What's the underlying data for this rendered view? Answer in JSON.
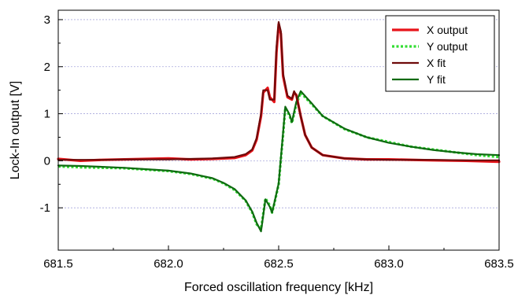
{
  "chart_data": {
    "type": "line",
    "title": "",
    "xlabel": "Forced oscillation frequency [kHz]",
    "ylabel": "Lock-In output [V]",
    "xlim": [
      681.5,
      683.5
    ],
    "ylim": [
      -1.9,
      3.2
    ],
    "xticks": [
      681.5,
      682.0,
      682.5,
      683.0,
      683.5
    ],
    "xtick_labels": [
      "681.5",
      "682.0",
      "682.5",
      "683.0",
      "683.5"
    ],
    "yticks": [
      -1,
      0,
      1,
      2,
      3
    ],
    "ytick_labels": [
      "-1",
      "0",
      "1",
      "2",
      "3"
    ],
    "grid": "horizontal dotted",
    "legend_position": "top-right",
    "series": [
      {
        "name": "X output",
        "style": "solid",
        "color": "#e8141a",
        "x": [
          681.5,
          681.6,
          681.7,
          681.8,
          681.9,
          682.0,
          682.1,
          682.2,
          682.3,
          682.35,
          682.38,
          682.4,
          682.42,
          682.43,
          682.45,
          682.46,
          682.48,
          682.49,
          682.5,
          682.51,
          682.52,
          682.54,
          682.56,
          682.57,
          682.58,
          682.6,
          682.62,
          682.65,
          682.7,
          682.8,
          682.9,
          683.0,
          683.2,
          683.35,
          683.5
        ],
        "values": [
          0.04,
          0.0,
          0.02,
          0.03,
          0.04,
          0.05,
          0.03,
          0.04,
          0.06,
          0.12,
          0.22,
          0.45,
          0.95,
          1.45,
          1.55,
          1.35,
          1.25,
          2.3,
          2.9,
          2.7,
          1.8,
          1.35,
          1.3,
          1.45,
          1.4,
          0.95,
          0.55,
          0.28,
          0.12,
          0.05,
          0.03,
          0.03,
          0.01,
          0.0,
          -0.02
        ]
      },
      {
        "name": "Y output",
        "style": "dotted",
        "color": "#33dd33",
        "x": [
          681.5,
          681.6,
          681.7,
          681.8,
          681.9,
          682.0,
          682.1,
          682.2,
          682.25,
          682.3,
          682.35,
          682.38,
          682.4,
          682.42,
          682.44,
          682.46,
          682.47,
          682.48,
          682.5,
          682.52,
          682.53,
          682.55,
          682.56,
          682.58,
          682.6,
          682.65,
          682.7,
          682.8,
          682.9,
          683.0,
          683.1,
          683.2,
          683.3,
          683.4,
          683.5
        ],
        "values": [
          -0.12,
          -0.14,
          -0.15,
          -0.16,
          -0.19,
          -0.22,
          -0.28,
          -0.38,
          -0.48,
          -0.62,
          -0.85,
          -1.1,
          -1.35,
          -1.45,
          -0.8,
          -0.95,
          -1.1,
          -0.92,
          -0.5,
          0.55,
          1.12,
          0.95,
          0.8,
          1.2,
          1.45,
          1.2,
          0.95,
          0.67,
          0.5,
          0.4,
          0.3,
          0.24,
          0.18,
          0.12,
          0.08
        ]
      },
      {
        "name": "X fit",
        "style": "solid",
        "color": "#6e0a0a",
        "x": [
          681.5,
          681.6,
          681.7,
          681.8,
          681.9,
          682.0,
          682.1,
          682.2,
          682.3,
          682.35,
          682.38,
          682.4,
          682.42,
          682.43,
          682.45,
          682.46,
          682.48,
          682.49,
          682.5,
          682.51,
          682.52,
          682.54,
          682.56,
          682.57,
          682.58,
          682.6,
          682.62,
          682.65,
          682.7,
          682.8,
          682.9,
          683.0,
          683.2,
          683.35,
          683.5
        ],
        "values": [
          0.02,
          0.02,
          0.02,
          0.03,
          0.03,
          0.03,
          0.04,
          0.05,
          0.08,
          0.14,
          0.24,
          0.48,
          1.0,
          1.5,
          1.5,
          1.3,
          1.3,
          2.4,
          2.95,
          2.75,
          1.85,
          1.38,
          1.32,
          1.48,
          1.38,
          0.95,
          0.55,
          0.28,
          0.12,
          0.05,
          0.03,
          0.02,
          0.02,
          0.01,
          0.01
        ]
      },
      {
        "name": "Y fit",
        "style": "solid",
        "color": "#0e6a10",
        "x": [
          681.5,
          681.6,
          681.7,
          681.8,
          681.9,
          682.0,
          682.1,
          682.2,
          682.25,
          682.3,
          682.35,
          682.38,
          682.4,
          682.42,
          682.44,
          682.46,
          682.47,
          682.48,
          682.5,
          682.52,
          682.53,
          682.55,
          682.56,
          682.58,
          682.6,
          682.65,
          682.7,
          682.8,
          682.9,
          683.0,
          683.1,
          683.2,
          683.3,
          683.4,
          683.5
        ],
        "values": [
          -0.1,
          -0.11,
          -0.13,
          -0.15,
          -0.18,
          -0.21,
          -0.27,
          -0.37,
          -0.47,
          -0.6,
          -0.84,
          -1.08,
          -1.32,
          -1.5,
          -0.82,
          -0.98,
          -1.1,
          -0.9,
          -0.48,
          0.6,
          1.15,
          0.98,
          0.82,
          1.25,
          1.48,
          1.22,
          0.95,
          0.68,
          0.5,
          0.38,
          0.3,
          0.23,
          0.18,
          0.14,
          0.12
        ]
      }
    ]
  }
}
